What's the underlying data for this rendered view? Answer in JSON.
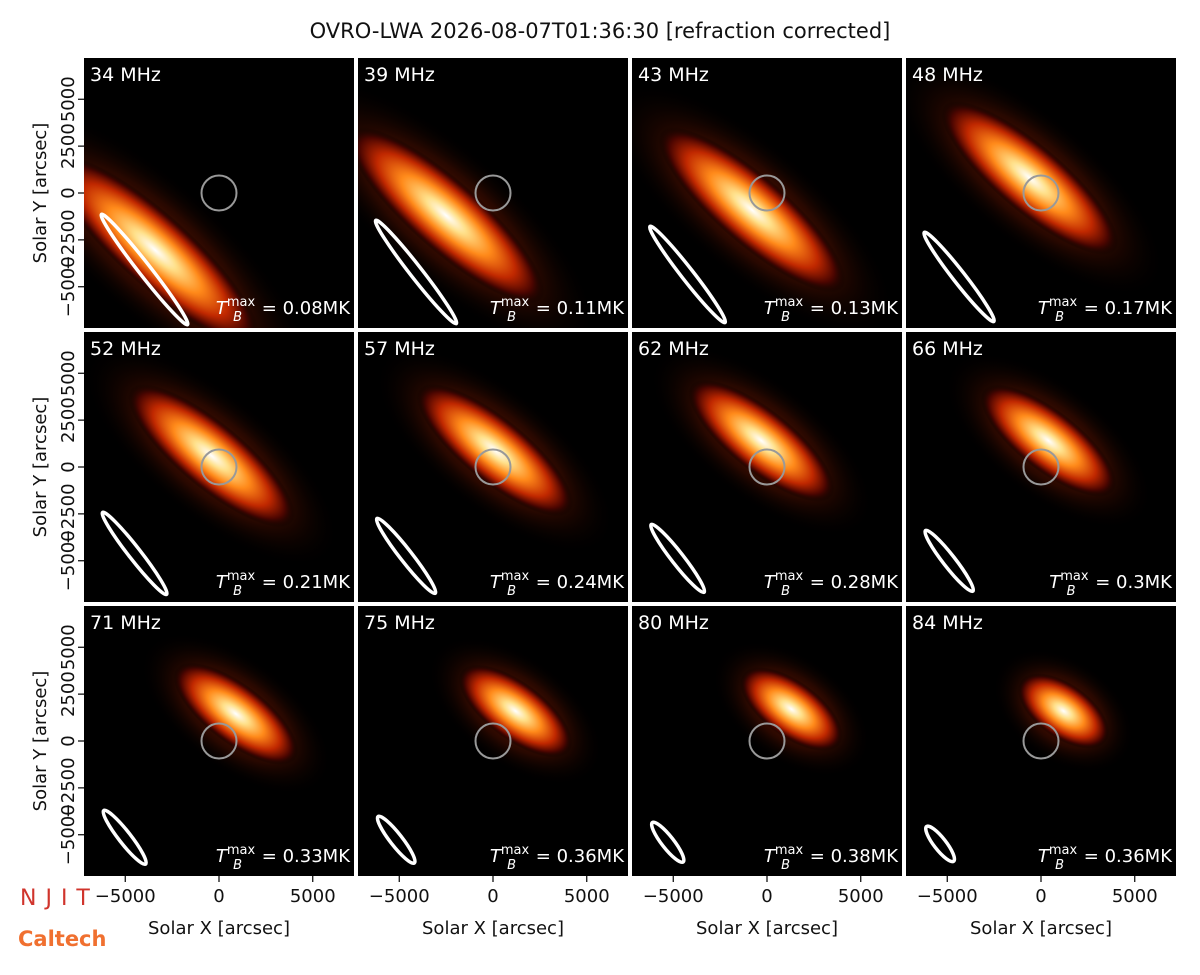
{
  "chart_data": {
    "type": "image-grid",
    "title": "OVRO-LWA 2026-08-07T01:36:30 [refraction corrected]",
    "xlabel": "Solar X [arcsec]",
    "ylabel": "Solar Y [arcsec]",
    "xlim": [
      -7200,
      7200
    ],
    "ylim": [
      -7200,
      7200
    ],
    "xticks": [
      {
        "value": -5000,
        "label": "−5000"
      },
      0,
      5000
    ],
    "yticks": [
      {
        "value": -5000,
        "label": "−5000"
      },
      {
        "value": -2500,
        "label": "−2500"
      },
      0,
      2500,
      5000
    ],
    "tb_symbol": "T",
    "tb_sub": "B",
    "tb_sup": "max",
    "panels": [
      {
        "title": "34 MHz",
        "annotation": " = 0.08MK",
        "centroid_x": -3400,
        "centroid_y": -3050
      },
      {
        "title": "39 MHz",
        "annotation": " = 0.11MK",
        "centroid_x": -2500,
        "centroid_y": -1200
      },
      {
        "title": "43 MHz",
        "annotation": " = 0.13MK",
        "centroid_x": -800,
        "centroid_y": -900
      },
      {
        "title": "48 MHz",
        "annotation": " = 0.17MK",
        "centroid_x": -600,
        "centroid_y": 800
      },
      {
        "title": "52 MHz",
        "annotation": " = 0.21MK",
        "centroid_x": -400,
        "centroid_y": 600
      },
      {
        "title": "57 MHz",
        "annotation": " = 0.24MK",
        "centroid_x": 100,
        "centroid_y": 900
      },
      {
        "title": "62 MHz",
        "annotation": " = 0.28MK",
        "centroid_x": -300,
        "centroid_y": 1400
      },
      {
        "title": "66 MHz",
        "annotation": " = 0.3MK",
        "centroid_x": 400,
        "centroid_y": 1400
      },
      {
        "title": "71 MHz",
        "annotation": " = 0.33MK",
        "centroid_x": 900,
        "centroid_y": 1450
      },
      {
        "title": "75 MHz",
        "annotation": " = 0.36MK",
        "centroid_x": 1200,
        "centroid_y": 1600
      },
      {
        "title": "80 MHz",
        "annotation": " = 0.38MK",
        "centroid_x": 1300,
        "centroid_y": 1700
      },
      {
        "title": "84 MHz",
        "annotation": " = 0.36MK",
        "centroid_x": 1200,
        "centroid_y": 1600
      }
    ]
  },
  "logos": [
    "NJIT",
    "Caltech"
  ]
}
